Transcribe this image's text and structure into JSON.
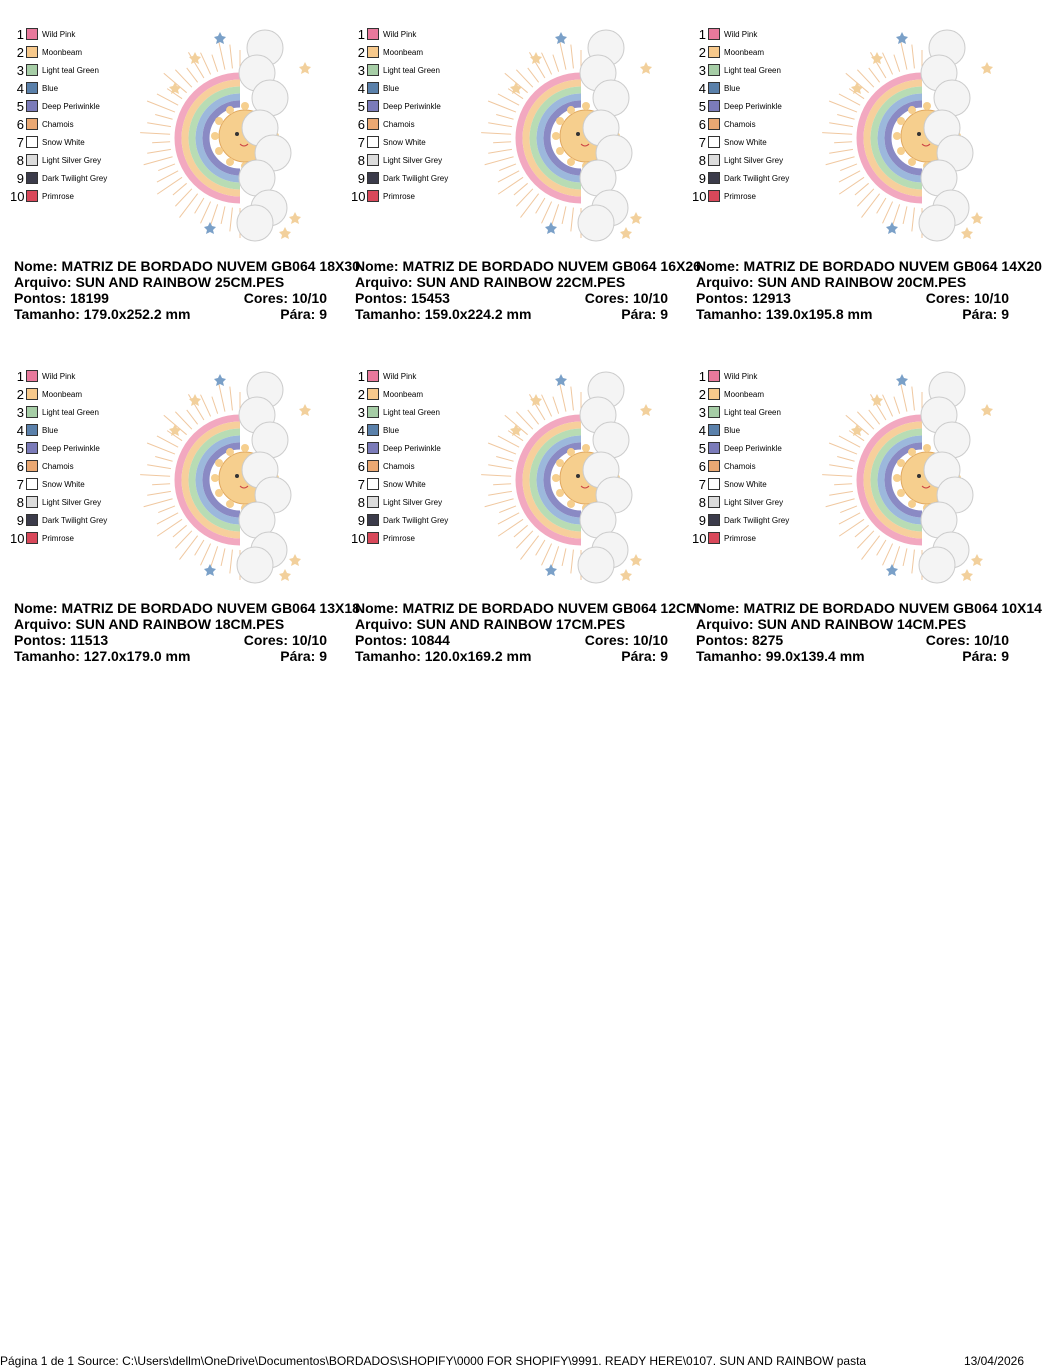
{
  "labels": {
    "name": "Nome:",
    "file": "Arquivo:",
    "stitches": "Pontos:",
    "colors": "Cores:",
    "size": "Tamanho:",
    "stops": "Pára:"
  },
  "threads": [
    {
      "number": "1",
      "name": "Wild Pink",
      "color": "#e8799c"
    },
    {
      "number": "2",
      "name": "Moonbeam",
      "color": "#f7c98c"
    },
    {
      "number": "3",
      "name": "Light teal Green",
      "color": "#a6cda6"
    },
    {
      "number": "4",
      "name": "Blue",
      "color": "#5a80aa"
    },
    {
      "number": "5",
      "name": "Deep Periwinkle",
      "color": "#7b7bb9"
    },
    {
      "number": "6",
      "name": "Chamois",
      "color": "#eaa873"
    },
    {
      "number": "7",
      "name": "Snow White",
      "color": "#ffffff"
    },
    {
      "number": "8",
      "name": "Light Silver Grey",
      "color": "#dcdcdc"
    },
    {
      "number": "9",
      "name": "Dark Twilight Grey",
      "color": "#3b3b4a"
    },
    {
      "number": "10",
      "name": "Primrose",
      "color": "#d8485a"
    }
  ],
  "designs": [
    {
      "name": "MATRIZ DE BORDADO NUVEM GB064 18X30",
      "file": "SUN AND RAINBOW 25CM.PES",
      "stitches": "18199",
      "colors": "10/10",
      "size": "179.0x252.2 mm",
      "stops": "9"
    },
    {
      "name": "MATRIZ DE BORDADO NUVEM GB064 16X26",
      "file": "SUN AND RAINBOW 22CM.PES",
      "stitches": "15453",
      "colors": "10/10",
      "size": "159.0x224.2 mm",
      "stops": "9"
    },
    {
      "name": "MATRIZ DE BORDADO NUVEM GB064 14X20",
      "file": "SUN AND RAINBOW 20CM.PES",
      "stitches": "12913",
      "colors": "10/10",
      "size": "139.0x195.8 mm",
      "stops": "9"
    },
    {
      "name": "MATRIZ DE BORDADO NUVEM GB064 13X18",
      "file": "SUN AND RAINBOW 18CM.PES",
      "stitches": "11513",
      "colors": "10/10",
      "size": "127.0x179.0 mm",
      "stops": "9"
    },
    {
      "name": "MATRIZ DE BORDADO NUVEM GB064 12CM",
      "file": "SUN AND RAINBOW 17CM.PES",
      "stitches": "10844",
      "colors": "10/10",
      "size": "120.0x169.2 mm",
      "stops": "9"
    },
    {
      "name": "MATRIZ DE BORDADO NUVEM GB064 10X14",
      "file": "SUN AND RAINBOW 14CM.PES",
      "stitches": "8275",
      "colors": "10/10",
      "size": "99.0x139.4 mm",
      "stops": "9"
    }
  ],
  "footer": {
    "source": "Página 1 de 1 Source: C:\\Users\\dellm\\OneDrive\\Documentos\\BORDADOS\\SHOPIFY\\0000 FOR SHOPIFY\\9991. READY HERE\\0107. SUN AND RAINBOW pasta",
    "date": "13/04/2026"
  }
}
